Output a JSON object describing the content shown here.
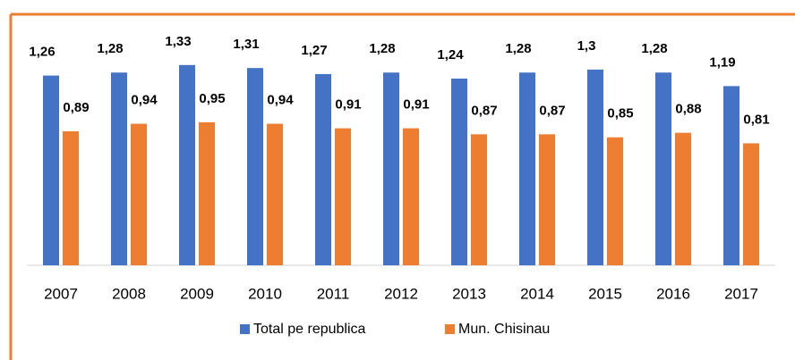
{
  "chart_data": {
    "type": "bar",
    "categories": [
      "2007",
      "2008",
      "2009",
      "2010",
      "2011",
      "2012",
      "2013",
      "2014",
      "2015",
      "2016",
      "2017"
    ],
    "series": [
      {
        "name": "Total pe republica",
        "color": "#4472c4",
        "values": [
          1.26,
          1.28,
          1.33,
          1.31,
          1.27,
          1.28,
          1.24,
          1.28,
          1.3,
          1.28,
          1.19
        ],
        "value_labels": [
          "1,26",
          "1,28",
          "1,33",
          "1,31",
          "1,27",
          "1,28",
          "1,24",
          "1,28",
          "1,3",
          "1,28",
          "1,19"
        ]
      },
      {
        "name": "Mun. Chisinau",
        "color": "#ed7d31",
        "values": [
          0.89,
          0.94,
          0.95,
          0.94,
          0.91,
          0.91,
          0.87,
          0.87,
          0.85,
          0.88,
          0.81
        ],
        "value_labels": [
          "0,89",
          "0,94",
          "0,95",
          "0,94",
          "0,91",
          "0,91",
          "0,87",
          "0,87",
          "0,85",
          "0,88",
          "0,81"
        ]
      }
    ],
    "ylim": [
      0,
      1.4
    ],
    "legend": "bottom"
  }
}
